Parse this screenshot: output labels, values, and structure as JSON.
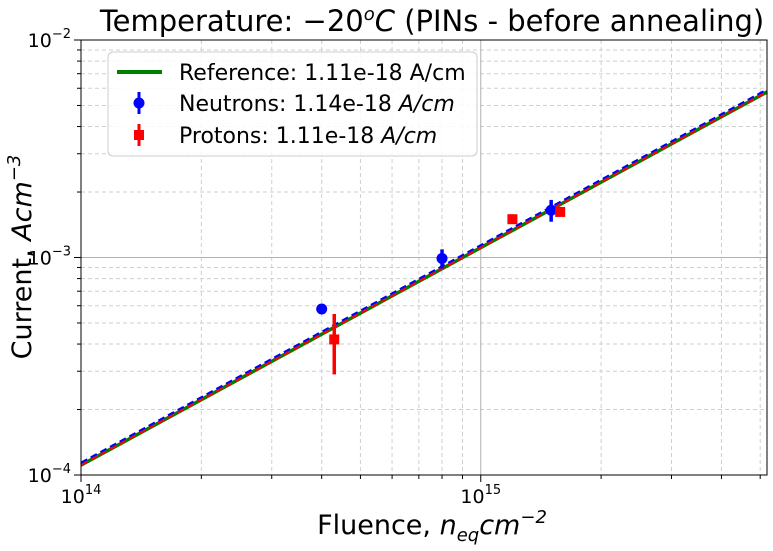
{
  "chart_data": {
    "type": "scatter",
    "title": "Temperature: −20°C (PINs - before annealing)",
    "title_parts": {
      "prefix": "Temperature: −20",
      "sup": "o",
      "unit": "C",
      "suffix": " (PINs - before annealing)"
    },
    "xlabel": "Fluence, n_eq cm^-2",
    "xlabel_parts": {
      "prefix": "Fluence, ",
      "var": "n",
      "sub": "eq",
      "cm": "cm",
      "sup": "−2"
    },
    "ylabel": "Current, Acm^-3",
    "ylabel_parts": {
      "prefix": "Current, ",
      "var": "Acm",
      "sup": "−3"
    },
    "x_scale": "log",
    "y_scale": "log",
    "xlim": [
      100000000000000.0,
      5200000000000000.0
    ],
    "ylim": [
      0.0001,
      0.01
    ],
    "x_ticks": [
      {
        "value": 100000000000000.0,
        "base": "10",
        "exp": "14"
      },
      {
        "value": 1000000000000000.0,
        "base": "10",
        "exp": "15"
      }
    ],
    "y_ticks": [
      {
        "value": 0.0001,
        "base": "10",
        "exp": "−4"
      },
      {
        "value": 0.001,
        "base": "10",
        "exp": "−3"
      },
      {
        "value": 0.01,
        "base": "10",
        "exp": "−2"
      }
    ],
    "grid": true,
    "legend_position": "top-left",
    "series": [
      {
        "name": "Reference",
        "kind": "line",
        "label": "Reference: 1.11e-18 A/cm",
        "slope": 1.11e-18,
        "color": "#008000"
      },
      {
        "name": "Neutrons",
        "kind": "points",
        "label_prefix": "Neutrons:   1.14e-18 ",
        "label_unit": "A/cm",
        "slope": 1.14e-18,
        "color": "#0000ff",
        "marker": "circle",
        "points": [
          {
            "x": 400000000000000.0,
            "y": 0.00058,
            "err": 0.0
          },
          {
            "x": 800000000000000.0,
            "y": 0.00099,
            "err": 0.0001
          },
          {
            "x": 1500000000000000.0,
            "y": 0.00165,
            "err": 0.00019
          }
        ]
      },
      {
        "name": "Protons",
        "kind": "points",
        "label_prefix": "Protons:     1.11e-18 ",
        "label_unit": "A/cm",
        "slope": 1.11e-18,
        "color": "#ff0000",
        "marker": "square",
        "points": [
          {
            "x": 430000000000000.0,
            "y": 0.00042,
            "err": 0.00013
          },
          {
            "x": 1200000000000000.0,
            "y": 0.0015,
            "err": 0.0
          },
          {
            "x": 1580000000000000.0,
            "y": 0.00162,
            "err": 0.0
          }
        ]
      }
    ]
  }
}
